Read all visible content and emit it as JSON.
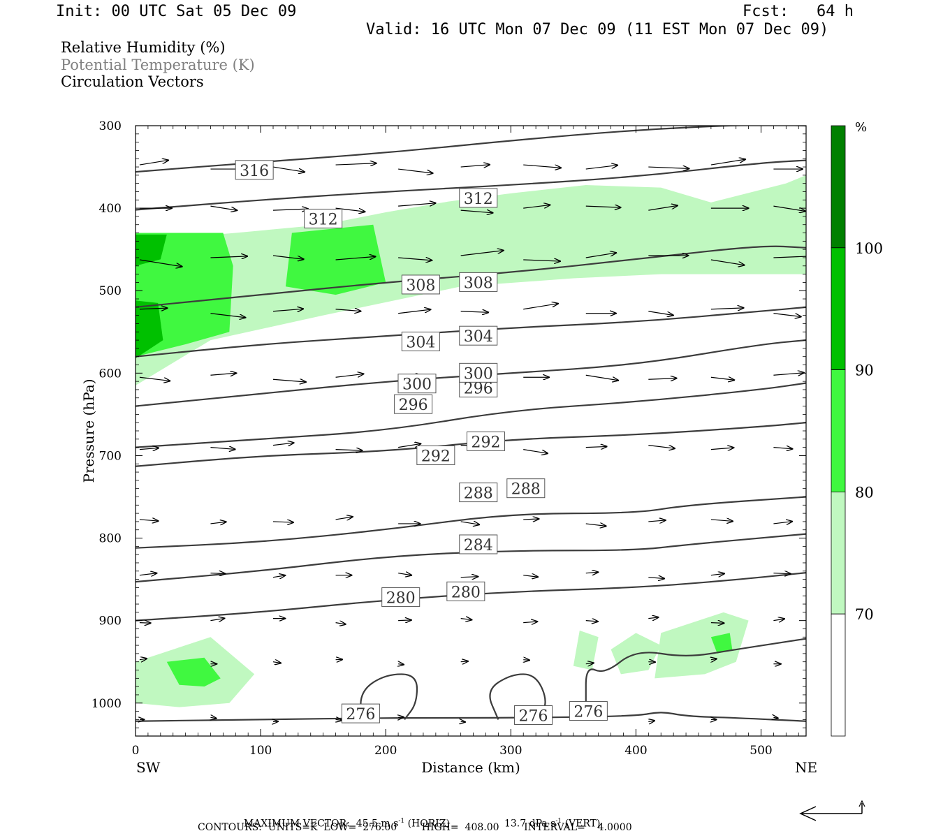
{
  "header": {
    "init": "Init: 00 UTC Sat 05 Dec 09",
    "fcst": "Fcst:   64 h",
    "valid": "Valid: 16 UTC Mon 07 Dec 09 (11 EST Mon 07 Dec 09)"
  },
  "legend": {
    "rh": "Relative Humidity (%)",
    "theta": "Potential Temperature (K)",
    "vectors": "Circulation Vectors"
  },
  "colors": {
    "rh70": "#c0f8c0",
    "rh80": "#40f840",
    "rh90": "#00c000",
    "rh100": "#008000",
    "contour": "#3c3c3c",
    "theta_legend": "#808080"
  },
  "colorbar": {
    "unit": "%",
    "bands": [
      {
        "from": 60,
        "to": 70,
        "color": "#ffffff"
      },
      {
        "from": 70,
        "to": 80,
        "color": "#c0f8c0"
      },
      {
        "from": 80,
        "to": 90,
        "color": "#40f840"
      },
      {
        "from": 90,
        "to": 100,
        "color": "#00c000"
      },
      {
        "from": 100,
        "to": 110,
        "color": "#008000"
      }
    ],
    "labels": [
      "70",
      "80",
      "90",
      "100"
    ]
  },
  "footer": {
    "max_vector_label": "MAXIMUM VECTOR:",
    "max_horiz": "45.5 m s",
    "max_horiz_suffix": " (HORIZ)",
    "max_vert": "13.7 dPa s",
    "max_vert_suffix": " (VERT)",
    "exp": "-1",
    "contours": "CONTOURS:  UNITS=K  LOW=  276.00        HIGH=  408.00        INTERVAL=    4.0000"
  },
  "chart_data": {
    "type": "cross-section",
    "xlabel": "Distance (km)",
    "ylabel": "Pressure (hPa)",
    "xlim": [
      0,
      536
    ],
    "ylim": [
      1040,
      300
    ],
    "x_ticks": [
      0,
      100,
      200,
      300,
      400,
      500
    ],
    "y_ticks": [
      300,
      400,
      500,
      600,
      700,
      800,
      900,
      1000
    ],
    "x_end_labels": {
      "left": "SW",
      "right": "NE"
    },
    "contour_units": "K",
    "contour_low": 276.0,
    "contour_high": 408.0,
    "contour_interval": 4.0,
    "theta_contours": [
      {
        "value": 276,
        "points": [
          [
            0,
            1022
          ],
          [
            100,
            1020
          ],
          [
            200,
            1018
          ],
          [
            300,
            1018
          ],
          [
            400,
            1016
          ],
          [
            420,
            1010
          ],
          [
            440,
            1016
          ],
          [
            480,
            1018
          ],
          [
            536,
            1022
          ]
        ],
        "labels": [
          [
            180,
            1013
          ],
          [
            318,
            1015
          ]
        ]
      },
      {
        "value": 276,
        "points": [
          [
            180,
            1018
          ],
          [
            180,
            985
          ],
          [
            200,
            965
          ],
          [
            225,
            965
          ],
          [
            225,
            1000
          ],
          [
            215,
            1020
          ]
        ]
      },
      {
        "value": 276,
        "points": [
          [
            290,
            1020
          ],
          [
            280,
            985
          ],
          [
            300,
            965
          ],
          [
            320,
            965
          ],
          [
            330,
            1000
          ],
          [
            320,
            1022
          ]
        ]
      },
      {
        "value": 276,
        "points": [
          [
            360,
            1000
          ],
          [
            360,
            955
          ],
          [
            375,
            965
          ],
          [
            400,
            935
          ],
          [
            440,
            945
          ],
          [
            480,
            935
          ],
          [
            536,
            922
          ]
        ],
        "labels": [
          [
            362,
            1010
          ]
        ]
      },
      {
        "value": 280,
        "points": [
          [
            0,
            900
          ],
          [
            100,
            890
          ],
          [
            200,
            875
          ],
          [
            300,
            865
          ],
          [
            400,
            860
          ],
          [
            470,
            852
          ],
          [
            536,
            842
          ]
        ],
        "labels": [
          [
            212,
            872
          ],
          [
            264,
            865
          ]
        ]
      },
      {
        "value": 284,
        "points": [
          [
            0,
            853
          ],
          [
            100,
            840
          ],
          [
            200,
            822
          ],
          [
            300,
            815
          ],
          [
            400,
            815
          ],
          [
            440,
            808
          ],
          [
            536,
            795
          ]
        ],
        "labels": [
          [
            274,
            808
          ]
        ]
      },
      {
        "value": 288,
        "points": [
          [
            0,
            812
          ],
          [
            100,
            805
          ],
          [
            200,
            790
          ],
          [
            300,
            770
          ],
          [
            400,
            770
          ],
          [
            440,
            760
          ],
          [
            536,
            750
          ]
        ],
        "labels": [
          [
            274,
            745
          ],
          [
            312,
            740
          ]
        ]
      },
      {
        "value": 292,
        "points": [
          [
            0,
            713
          ],
          [
            100,
            700
          ],
          [
            200,
            695
          ],
          [
            300,
            680
          ],
          [
            400,
            675
          ],
          [
            500,
            665
          ],
          [
            536,
            660
          ]
        ],
        "labels": [
          [
            240,
            700
          ],
          [
            280,
            683
          ]
        ]
      },
      {
        "value": 296,
        "points": [
          [
            0,
            690
          ],
          [
            100,
            680
          ],
          [
            200,
            670
          ],
          [
            300,
            645
          ],
          [
            400,
            635
          ],
          [
            500,
            620
          ],
          [
            536,
            612
          ]
        ],
        "labels": [
          [
            222,
            638
          ],
          [
            274,
            618
          ]
        ]
      },
      {
        "value": 300,
        "points": [
          [
            0,
            640
          ],
          [
            100,
            625
          ],
          [
            200,
            610
          ],
          [
            300,
            600
          ],
          [
            400,
            590
          ],
          [
            500,
            565
          ],
          [
            536,
            560
          ]
        ],
        "labels": [
          [
            225,
            613
          ],
          [
            274,
            600
          ]
        ]
      },
      {
        "value": 304,
        "points": [
          [
            0,
            580
          ],
          [
            100,
            565
          ],
          [
            200,
            555
          ],
          [
            300,
            545
          ],
          [
            400,
            538
          ],
          [
            500,
            525
          ],
          [
            536,
            520
          ]
        ],
        "labels": [
          [
            228,
            562
          ],
          [
            274,
            555
          ]
        ]
      },
      {
        "value": 308,
        "points": [
          [
            0,
            520
          ],
          [
            100,
            505
          ],
          [
            200,
            490
          ],
          [
            300,
            478
          ],
          [
            400,
            462
          ],
          [
            500,
            445
          ],
          [
            536,
            448
          ]
        ],
        "labels": [
          [
            228,
            493
          ],
          [
            274,
            490
          ]
        ]
      },
      {
        "value": 312,
        "points": [
          [
            0,
            402
          ],
          [
            100,
            390
          ],
          [
            200,
            380
          ],
          [
            300,
            372
          ],
          [
            400,
            362
          ],
          [
            500,
            345
          ],
          [
            536,
            342
          ]
        ],
        "labels": [
          [
            150,
            413
          ],
          [
            274,
            388
          ]
        ]
      },
      {
        "value": 316,
        "points": [
          [
            0,
            356
          ],
          [
            100,
            344
          ],
          [
            200,
            333
          ],
          [
            300,
            318
          ],
          [
            400,
            305
          ],
          [
            500,
            298
          ],
          [
            536,
            300
          ]
        ],
        "labels": [
          [
            95,
            354
          ]
        ]
      }
    ],
    "rh_regions": [
      {
        "level": 70,
        "points": [
          [
            0,
            440
          ],
          [
            80,
            430
          ],
          [
            150,
            420
          ],
          [
            200,
            405
          ],
          [
            250,
            392
          ],
          [
            300,
            382
          ],
          [
            360,
            372
          ],
          [
            420,
            375
          ],
          [
            460,
            393
          ],
          [
            520,
            370
          ],
          [
            536,
            360
          ],
          [
            536,
            480
          ],
          [
            420,
            480
          ],
          [
            350,
            485
          ],
          [
            260,
            495
          ],
          [
            150,
            530
          ],
          [
            60,
            560
          ],
          [
            0,
            615
          ]
        ]
      },
      {
        "level": 80,
        "points": [
          [
            0,
            430
          ],
          [
            70,
            430
          ],
          [
            78,
            470
          ],
          [
            75,
            550
          ],
          [
            40,
            565
          ],
          [
            0,
            580
          ]
        ]
      },
      {
        "level": 80,
        "points": [
          [
            125,
            430
          ],
          [
            190,
            420
          ],
          [
            200,
            490
          ],
          [
            160,
            505
          ],
          [
            120,
            495
          ]
        ]
      },
      {
        "level": 90,
        "points": [
          [
            0,
            432
          ],
          [
            25,
            432
          ],
          [
            20,
            462
          ],
          [
            0,
            470
          ]
        ]
      },
      {
        "level": 90,
        "points": [
          [
            0,
            512
          ],
          [
            18,
            515
          ],
          [
            22,
            560
          ],
          [
            0,
            582
          ]
        ]
      },
      {
        "level": 70,
        "points": [
          [
            0,
            950
          ],
          [
            60,
            920
          ],
          [
            95,
            965
          ],
          [
            75,
            1000
          ],
          [
            35,
            1005
          ],
          [
            0,
            1000
          ]
        ]
      },
      {
        "level": 80,
        "points": [
          [
            25,
            950
          ],
          [
            55,
            945
          ],
          [
            68,
            970
          ],
          [
            55,
            980
          ],
          [
            35,
            978
          ]
        ]
      },
      {
        "level": 70,
        "points": [
          [
            380,
            935
          ],
          [
            400,
            915
          ],
          [
            420,
            930
          ],
          [
            410,
            960
          ],
          [
            388,
            965
          ]
        ]
      },
      {
        "level": 70,
        "points": [
          [
            355,
            912
          ],
          [
            370,
            920
          ],
          [
            365,
            960
          ],
          [
            350,
            955
          ]
        ]
      },
      {
        "level": 70,
        "points": [
          [
            420,
            915
          ],
          [
            470,
            890
          ],
          [
            490,
            900
          ],
          [
            480,
            950
          ],
          [
            455,
            965
          ],
          [
            415,
            970
          ]
        ]
      },
      {
        "level": 80,
        "points": [
          [
            460,
            920
          ],
          [
            475,
            915
          ],
          [
            477,
            935
          ],
          [
            465,
            940
          ]
        ]
      }
    ],
    "vectors_rows": [
      350,
      400,
      460,
      525,
      605,
      690,
      780,
      845,
      900,
      950,
      1020
    ],
    "vectors_x": [
      10,
      60,
      110,
      160,
      210,
      260,
      310,
      360,
      410,
      460,
      510
    ]
  }
}
